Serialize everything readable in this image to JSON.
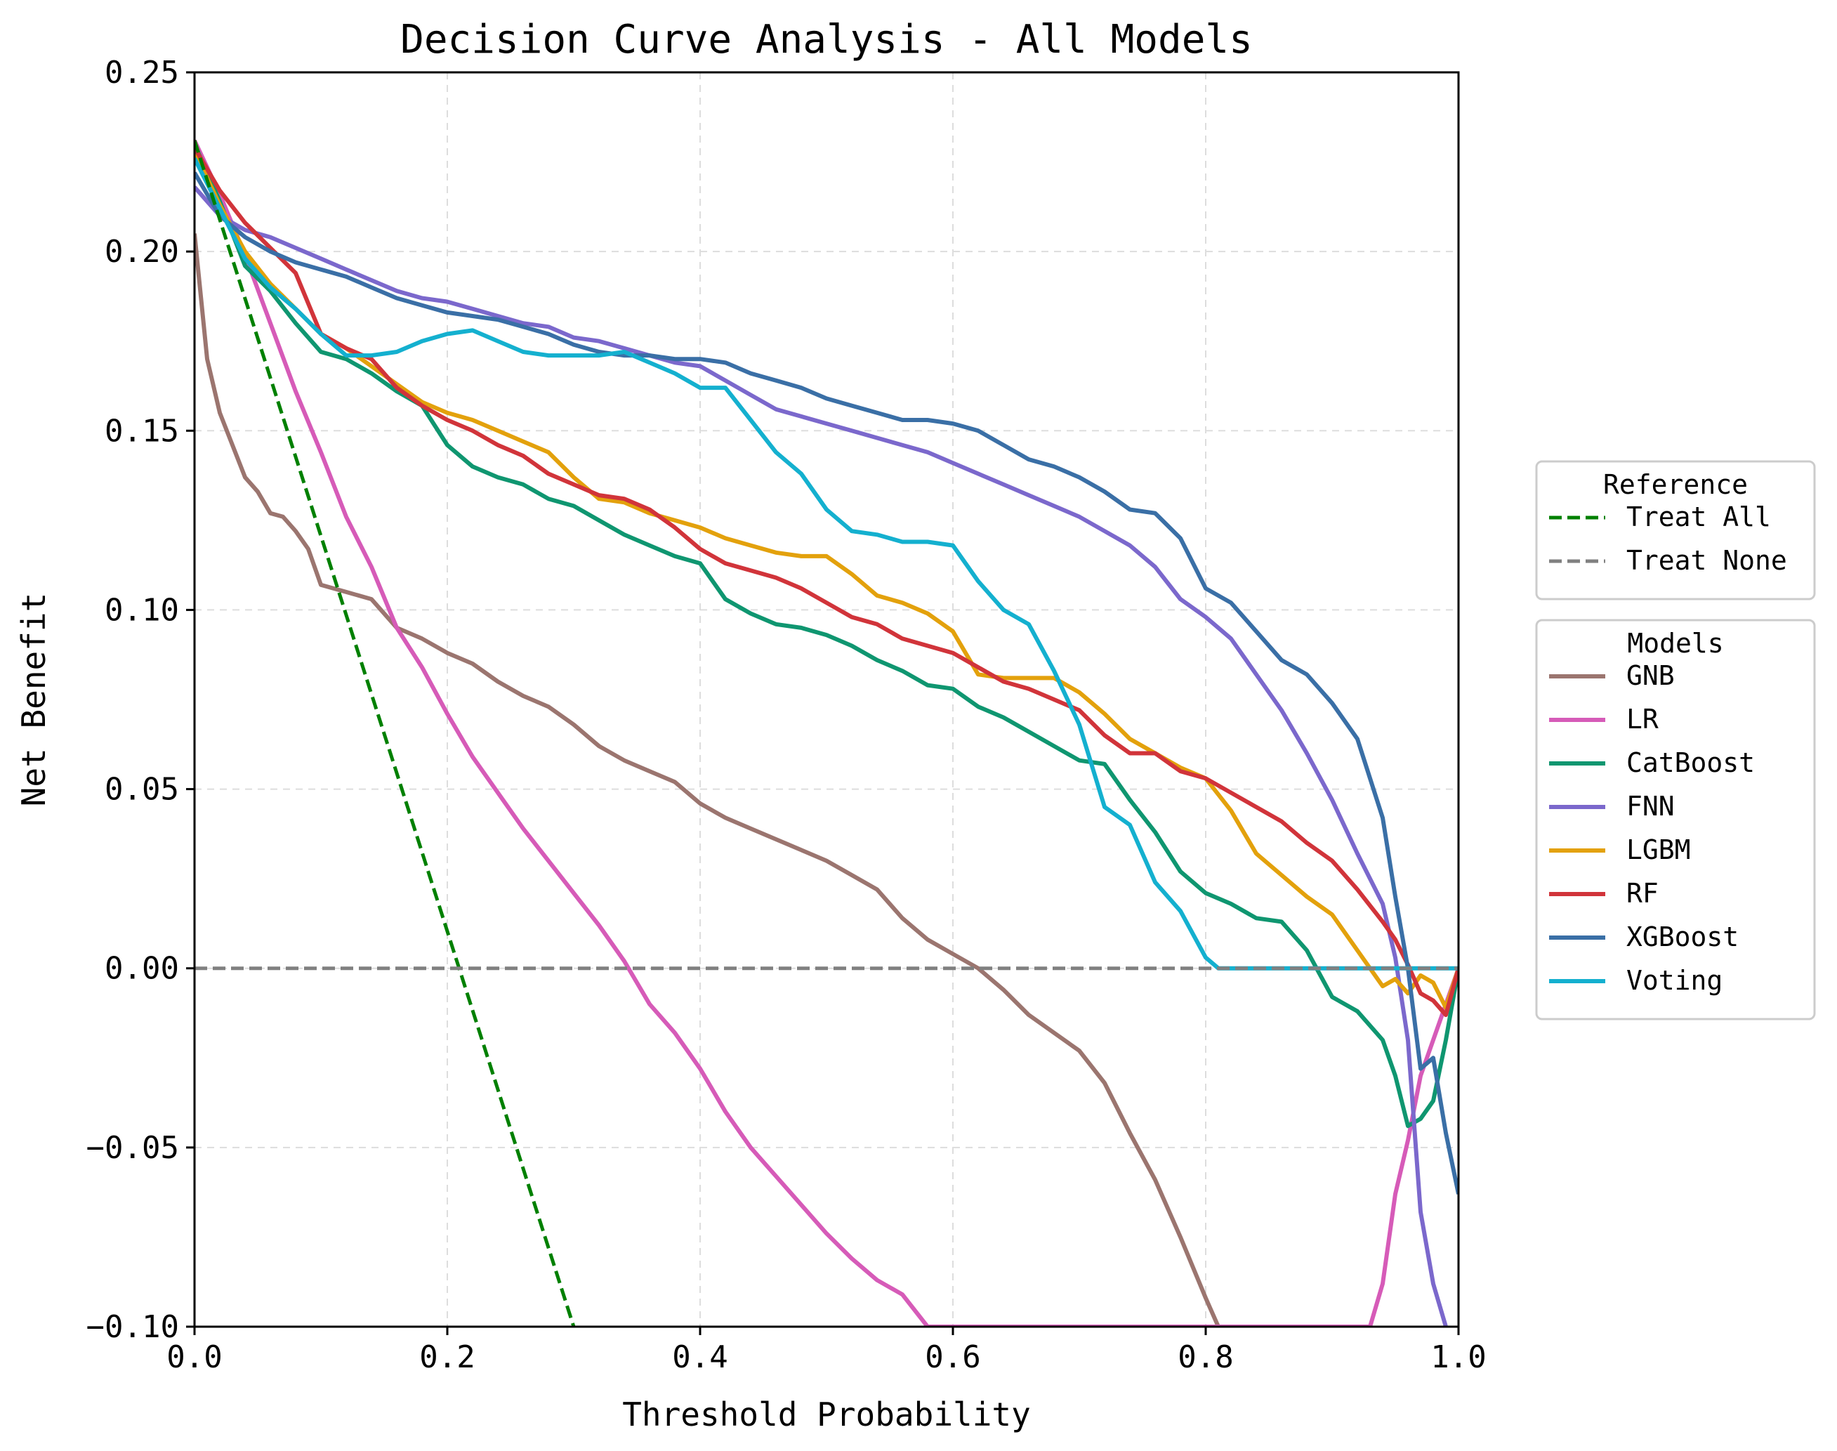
{
  "chart_data": {
    "type": "line",
    "title": "Decision Curve Analysis - All Models",
    "xlabel": "Threshold Probability",
    "ylabel": "Net Benefit",
    "xlim": [
      0.0,
      1.0
    ],
    "ylim": [
      -0.1,
      0.25
    ],
    "xticks": [
      "0.0",
      "0.2",
      "0.4",
      "0.6",
      "0.8",
      "1.0"
    ],
    "yticks": [
      "−0.10",
      "−0.05",
      "0.00",
      "0.05",
      "0.10",
      "0.15",
      "0.20",
      "0.25"
    ],
    "grid": true,
    "legends": [
      {
        "title": "Reference",
        "placement": "right",
        "entries": [
          {
            "label": "Treat All",
            "color": "#008000",
            "dash": "dashed"
          },
          {
            "label": "Treat None",
            "color": "#808080",
            "dash": "dashed"
          }
        ]
      },
      {
        "title": "Models",
        "placement": "right",
        "entries": [
          {
            "label": "GNB",
            "color": "#9b756f"
          },
          {
            "label": "LR",
            "color": "#d65bb8"
          },
          {
            "label": "CatBoost",
            "color": "#0f9670"
          },
          {
            "label": "FNN",
            "color": "#7b68cc"
          },
          {
            "label": "LGBM",
            "color": "#e3a10c"
          },
          {
            "label": "RF",
            "color": "#d1343a"
          },
          {
            "label": "XGBoost",
            "color": "#3a6fa6"
          },
          {
            "label": "Voting",
            "color": "#14b0cf"
          }
        ]
      }
    ],
    "series": [
      {
        "name": "Treat All",
        "color": "#008000",
        "dash": "dashed",
        "x": [
          0.0,
          0.3
        ],
        "y": [
          0.231,
          -0.1
        ]
      },
      {
        "name": "Treat None",
        "color": "#808080",
        "dash": "dashed",
        "x": [
          0.0,
          1.0
        ],
        "y": [
          0.0,
          0.0
        ]
      },
      {
        "name": "GNB",
        "color": "#9b756f",
        "x": [
          0.0,
          0.01,
          0.02,
          0.03,
          0.04,
          0.05,
          0.06,
          0.07,
          0.08,
          0.09,
          0.1,
          0.12,
          0.14,
          0.16,
          0.18,
          0.2,
          0.22,
          0.24,
          0.26,
          0.28,
          0.3,
          0.32,
          0.34,
          0.36,
          0.38,
          0.4,
          0.42,
          0.44,
          0.46,
          0.48,
          0.5,
          0.52,
          0.54,
          0.56,
          0.58,
          0.6,
          0.62,
          0.64,
          0.66,
          0.68,
          0.7,
          0.72,
          0.74,
          0.76,
          0.78,
          0.8,
          0.81
        ],
        "y": [
          0.205,
          0.17,
          0.155,
          0.146,
          0.137,
          0.133,
          0.127,
          0.126,
          0.122,
          0.117,
          0.107,
          0.105,
          0.103,
          0.095,
          0.092,
          0.088,
          0.085,
          0.08,
          0.076,
          0.073,
          0.068,
          0.062,
          0.058,
          0.055,
          0.052,
          0.046,
          0.042,
          0.039,
          0.036,
          0.033,
          0.03,
          0.026,
          0.022,
          0.014,
          0.008,
          0.004,
          0.0,
          -0.006,
          -0.013,
          -0.018,
          -0.023,
          -0.032,
          -0.046,
          -0.059,
          -0.075,
          -0.092,
          -0.1
        ]
      },
      {
        "name": "LR",
        "color": "#d65bb8",
        "x": [
          0.0,
          0.02,
          0.04,
          0.06,
          0.08,
          0.1,
          0.12,
          0.14,
          0.16,
          0.18,
          0.2,
          0.22,
          0.24,
          0.26,
          0.28,
          0.3,
          0.32,
          0.34,
          0.36,
          0.38,
          0.4,
          0.42,
          0.44,
          0.46,
          0.48,
          0.5,
          0.52,
          0.54,
          0.56,
          0.58,
          0.93,
          0.94,
          0.95,
          0.96,
          0.97,
          0.98,
          0.99,
          1.0
        ],
        "y": [
          0.231,
          0.216,
          0.199,
          0.18,
          0.161,
          0.144,
          0.126,
          0.112,
          0.095,
          0.084,
          0.071,
          0.059,
          0.049,
          0.039,
          0.03,
          0.021,
          0.012,
          0.002,
          -0.01,
          -0.018,
          -0.028,
          -0.04,
          -0.05,
          -0.058,
          -0.066,
          -0.074,
          -0.081,
          -0.087,
          -0.091,
          -0.1,
          -0.1,
          -0.088,
          -0.063,
          -0.048,
          -0.03,
          -0.02,
          -0.01,
          0.0
        ]
      },
      {
        "name": "CatBoost",
        "color": "#0f9670",
        "x": [
          0.0,
          0.02,
          0.04,
          0.06,
          0.08,
          0.1,
          0.12,
          0.14,
          0.16,
          0.18,
          0.2,
          0.22,
          0.24,
          0.26,
          0.28,
          0.3,
          0.32,
          0.34,
          0.36,
          0.38,
          0.4,
          0.42,
          0.44,
          0.46,
          0.48,
          0.5,
          0.52,
          0.54,
          0.56,
          0.58,
          0.6,
          0.62,
          0.64,
          0.66,
          0.68,
          0.7,
          0.72,
          0.74,
          0.76,
          0.78,
          0.8,
          0.82,
          0.84,
          0.86,
          0.88,
          0.9,
          0.92,
          0.94,
          0.95,
          0.96,
          0.97,
          0.98,
          0.99,
          1.0
        ],
        "y": [
          0.23,
          0.214,
          0.196,
          0.189,
          0.18,
          0.172,
          0.17,
          0.166,
          0.161,
          0.157,
          0.146,
          0.14,
          0.137,
          0.135,
          0.131,
          0.129,
          0.125,
          0.121,
          0.118,
          0.115,
          0.113,
          0.103,
          0.099,
          0.096,
          0.095,
          0.093,
          0.09,
          0.086,
          0.083,
          0.079,
          0.078,
          0.073,
          0.07,
          0.066,
          0.062,
          0.058,
          0.057,
          0.047,
          0.038,
          0.027,
          0.021,
          0.018,
          0.014,
          0.013,
          0.005,
          -0.008,
          -0.012,
          -0.02,
          -0.03,
          -0.044,
          -0.042,
          -0.037,
          -0.02,
          0.0
        ]
      },
      {
        "name": "FNN",
        "color": "#7b68cc",
        "x": [
          0.0,
          0.02,
          0.04,
          0.06,
          0.08,
          0.1,
          0.12,
          0.14,
          0.16,
          0.18,
          0.2,
          0.22,
          0.24,
          0.26,
          0.28,
          0.3,
          0.32,
          0.34,
          0.36,
          0.38,
          0.4,
          0.42,
          0.44,
          0.46,
          0.48,
          0.5,
          0.52,
          0.54,
          0.56,
          0.58,
          0.6,
          0.62,
          0.64,
          0.66,
          0.68,
          0.7,
          0.72,
          0.74,
          0.76,
          0.78,
          0.8,
          0.82,
          0.84,
          0.86,
          0.88,
          0.9,
          0.92,
          0.94,
          0.95,
          0.96,
          0.97,
          0.98,
          0.99
        ],
        "y": [
          0.218,
          0.21,
          0.206,
          0.204,
          0.201,
          0.198,
          0.195,
          0.192,
          0.189,
          0.187,
          0.186,
          0.184,
          0.182,
          0.18,
          0.179,
          0.176,
          0.175,
          0.173,
          0.171,
          0.169,
          0.168,
          0.164,
          0.16,
          0.156,
          0.154,
          0.152,
          0.15,
          0.148,
          0.146,
          0.144,
          0.141,
          0.138,
          0.135,
          0.132,
          0.129,
          0.126,
          0.122,
          0.118,
          0.112,
          0.103,
          0.098,
          0.092,
          0.082,
          0.072,
          0.06,
          0.047,
          0.032,
          0.018,
          0.003,
          -0.02,
          -0.068,
          -0.088,
          -0.1
        ]
      },
      {
        "name": "LGBM",
        "color": "#e3a10c",
        "x": [
          0.0,
          0.02,
          0.04,
          0.06,
          0.08,
          0.1,
          0.12,
          0.14,
          0.16,
          0.18,
          0.2,
          0.22,
          0.24,
          0.26,
          0.28,
          0.3,
          0.32,
          0.34,
          0.36,
          0.38,
          0.4,
          0.42,
          0.44,
          0.46,
          0.48,
          0.5,
          0.52,
          0.54,
          0.56,
          0.58,
          0.6,
          0.62,
          0.64,
          0.66,
          0.68,
          0.7,
          0.72,
          0.74,
          0.76,
          0.78,
          0.8,
          0.82,
          0.84,
          0.86,
          0.88,
          0.9,
          0.92,
          0.94,
          0.95,
          0.96,
          0.97,
          0.98,
          0.99,
          1.0
        ],
        "y": [
          0.228,
          0.213,
          0.2,
          0.191,
          0.184,
          0.177,
          0.173,
          0.168,
          0.163,
          0.158,
          0.155,
          0.153,
          0.15,
          0.147,
          0.144,
          0.137,
          0.131,
          0.13,
          0.127,
          0.125,
          0.123,
          0.12,
          0.118,
          0.116,
          0.115,
          0.115,
          0.11,
          0.104,
          0.102,
          0.099,
          0.094,
          0.082,
          0.081,
          0.081,
          0.081,
          0.077,
          0.071,
          0.064,
          0.06,
          0.056,
          0.053,
          0.044,
          0.032,
          0.026,
          0.02,
          0.015,
          0.005,
          -0.005,
          -0.003,
          -0.007,
          -0.002,
          -0.004,
          -0.011,
          0.0
        ]
      },
      {
        "name": "RF",
        "color": "#d1343a",
        "x": [
          0.0,
          0.02,
          0.04,
          0.06,
          0.08,
          0.1,
          0.12,
          0.14,
          0.16,
          0.18,
          0.2,
          0.22,
          0.24,
          0.26,
          0.28,
          0.3,
          0.32,
          0.34,
          0.36,
          0.38,
          0.4,
          0.42,
          0.44,
          0.46,
          0.48,
          0.5,
          0.52,
          0.54,
          0.56,
          0.58,
          0.6,
          0.62,
          0.64,
          0.66,
          0.68,
          0.7,
          0.72,
          0.74,
          0.76,
          0.78,
          0.8,
          0.82,
          0.84,
          0.86,
          0.88,
          0.9,
          0.92,
          0.94,
          0.95,
          0.96,
          0.97,
          0.98,
          0.99,
          1.0
        ],
        "y": [
          0.229,
          0.217,
          0.208,
          0.201,
          0.194,
          0.177,
          0.173,
          0.17,
          0.162,
          0.157,
          0.153,
          0.15,
          0.146,
          0.143,
          0.138,
          0.135,
          0.132,
          0.131,
          0.128,
          0.123,
          0.117,
          0.113,
          0.111,
          0.109,
          0.106,
          0.102,
          0.098,
          0.096,
          0.092,
          0.09,
          0.088,
          0.084,
          0.08,
          0.078,
          0.075,
          0.072,
          0.065,
          0.06,
          0.06,
          0.055,
          0.053,
          0.049,
          0.045,
          0.041,
          0.035,
          0.03,
          0.022,
          0.013,
          0.008,
          0.001,
          -0.007,
          -0.009,
          -0.013,
          0.0
        ]
      },
      {
        "name": "XGBoost",
        "color": "#3a6fa6",
        "x": [
          0.0,
          0.02,
          0.04,
          0.06,
          0.08,
          0.1,
          0.12,
          0.14,
          0.16,
          0.18,
          0.2,
          0.22,
          0.24,
          0.26,
          0.28,
          0.3,
          0.32,
          0.34,
          0.36,
          0.38,
          0.4,
          0.42,
          0.44,
          0.46,
          0.48,
          0.5,
          0.52,
          0.54,
          0.56,
          0.58,
          0.6,
          0.62,
          0.64,
          0.66,
          0.68,
          0.7,
          0.72,
          0.74,
          0.76,
          0.78,
          0.8,
          0.82,
          0.84,
          0.86,
          0.88,
          0.9,
          0.92,
          0.94,
          0.95,
          0.96,
          0.97,
          0.98,
          0.99,
          1.0
        ],
        "y": [
          0.222,
          0.21,
          0.204,
          0.2,
          0.197,
          0.195,
          0.193,
          0.19,
          0.187,
          0.185,
          0.183,
          0.182,
          0.181,
          0.179,
          0.177,
          0.174,
          0.172,
          0.171,
          0.171,
          0.17,
          0.17,
          0.169,
          0.166,
          0.164,
          0.162,
          0.159,
          0.157,
          0.155,
          0.153,
          0.153,
          0.152,
          0.15,
          0.146,
          0.142,
          0.14,
          0.137,
          0.133,
          0.128,
          0.127,
          0.12,
          0.106,
          0.102,
          0.094,
          0.086,
          0.082,
          0.074,
          0.064,
          0.042,
          0.02,
          0.0,
          -0.028,
          -0.025,
          -0.046,
          -0.063
        ]
      },
      {
        "name": "Voting",
        "color": "#14b0cf",
        "x": [
          0.0,
          0.02,
          0.04,
          0.06,
          0.08,
          0.1,
          0.12,
          0.14,
          0.16,
          0.18,
          0.2,
          0.22,
          0.24,
          0.26,
          0.28,
          0.3,
          0.32,
          0.34,
          0.36,
          0.38,
          0.4,
          0.42,
          0.44,
          0.46,
          0.48,
          0.5,
          0.52,
          0.54,
          0.56,
          0.58,
          0.6,
          0.62,
          0.64,
          0.66,
          0.68,
          0.7,
          0.72,
          0.74,
          0.76,
          0.78,
          0.8,
          0.81,
          1.0
        ],
        "y": [
          0.226,
          0.212,
          0.198,
          0.19,
          0.184,
          0.177,
          0.171,
          0.171,
          0.172,
          0.175,
          0.177,
          0.178,
          0.175,
          0.172,
          0.171,
          0.171,
          0.171,
          0.172,
          0.169,
          0.166,
          0.162,
          0.162,
          0.153,
          0.144,
          0.138,
          0.128,
          0.122,
          0.121,
          0.119,
          0.119,
          0.118,
          0.108,
          0.1,
          0.096,
          0.083,
          0.068,
          0.045,
          0.04,
          0.024,
          0.016,
          0.003,
          0.0,
          0.0
        ]
      }
    ]
  }
}
